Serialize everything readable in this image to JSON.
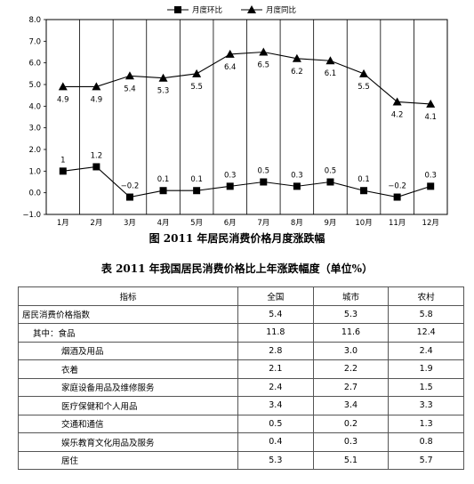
{
  "chart_data": {
    "type": "line",
    "categories": [
      "1月",
      "2月",
      "3月",
      "4月",
      "5月",
      "6月",
      "7月",
      "8月",
      "9月",
      "10月",
      "11月",
      "12月"
    ],
    "series": [
      {
        "name": "月度环比",
        "marker": "square",
        "values": [
          1,
          1.2,
          -0.2,
          0.1,
          0.1,
          0.3,
          0.5,
          0.3,
          0.5,
          0.1,
          -0.2,
          0.3
        ],
        "labels": [
          "1",
          "1.2",
          "−0.2",
          "0.1",
          "0.1",
          "0.3",
          "0.5",
          "0.3",
          "0.5",
          "0.1",
          "−0.2",
          "0.3"
        ]
      },
      {
        "name": "月度同比",
        "marker": "triangle",
        "values": [
          4.9,
          4.9,
          5.4,
          5.3,
          5.5,
          6.4,
          6.5,
          6.2,
          6.1,
          5.5,
          4.2,
          4.1
        ],
        "labels": [
          "4.9",
          "4.9",
          "5.4",
          "5.3",
          "5.5",
          "6.4",
          "6.5",
          "6.2",
          "6.1",
          "5.5",
          "4.2",
          "4.1"
        ]
      }
    ],
    "yticks": [
      "8.0",
      "7.0",
      "6.0",
      "5.0",
      "4.0",
      "3.0",
      "2.0",
      "1.0",
      "0.0",
      "−1.0"
    ],
    "ylim": [
      -1,
      8
    ],
    "grid": "vertical",
    "legend": "top"
  },
  "caption": "图 2011 年居民消费价格月度涨跌幅",
  "table": {
    "title": "表 2011 年我国居民消费价格比上年涨跌幅度（单位%）",
    "headers": [
      "指标",
      "全国",
      "城市",
      "农村"
    ],
    "rows": [
      {
        "label": "居民消费价格指数",
        "values": [
          "5.4",
          "5.3",
          "5.8"
        ],
        "level": 0
      },
      {
        "label": "其中：食品",
        "values": [
          "11.8",
          "11.6",
          "12.4"
        ],
        "level": 1
      },
      {
        "label": "烟酒及用品",
        "values": [
          "2.8",
          "3.0",
          "2.4"
        ],
        "level": 2
      },
      {
        "label": "衣着",
        "values": [
          "2.1",
          "2.2",
          "1.9"
        ],
        "level": 2
      },
      {
        "label": "家庭设备用品及维修服务",
        "values": [
          "2.4",
          "2.7",
          "1.5"
        ],
        "level": 2
      },
      {
        "label": "医疗保健和个人用品",
        "values": [
          "3.4",
          "3.4",
          "3.3"
        ],
        "level": 2
      },
      {
        "label": "交通和通信",
        "values": [
          "0.5",
          "0.2",
          "1.3"
        ],
        "level": 2
      },
      {
        "label": "娱乐教育文化用品及服务",
        "values": [
          "0.4",
          "0.3",
          "0.8"
        ],
        "level": 2
      },
      {
        "label": "居住",
        "values": [
          "5.3",
          "5.1",
          "5.7"
        ],
        "level": 2
      }
    ]
  }
}
